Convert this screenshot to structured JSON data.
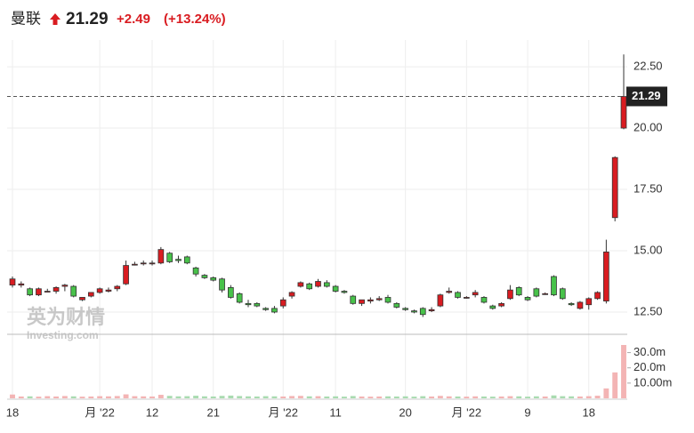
{
  "header": {
    "name": "曼联",
    "price": "21.29",
    "change": "+2.49",
    "change_pct": "(+13.24%)"
  },
  "watermark": {
    "cn": "英为财情",
    "en": "Investing.com"
  },
  "chart_data": {
    "type": "candlestick",
    "categories": [
      "18",
      null,
      null,
      null,
      null,
      null,
      null,
      null,
      null,
      null,
      "月 '22",
      null,
      null,
      null,
      null,
      null,
      "12",
      null,
      null,
      null,
      null,
      null,
      null,
      "21",
      null,
      null,
      null,
      null,
      null,
      null,
      null,
      "月 '22",
      null,
      null,
      null,
      null,
      null,
      "11",
      null,
      null,
      null,
      null,
      null,
      null,
      null,
      "20",
      null,
      null,
      null,
      null,
      null,
      null,
      "月 '22",
      null,
      null,
      null,
      null,
      null,
      null,
      "9",
      null,
      null,
      null,
      null,
      null,
      null,
      "18",
      null,
      null,
      null,
      null
    ],
    "open": [
      13.6,
      13.6,
      13.45,
      13.2,
      13.35,
      13.35,
      13.55,
      13.55,
      13.0,
      13.15,
      13.3,
      13.35,
      13.45,
      13.65,
      14.45,
      14.5,
      14.5,
      14.5,
      14.9,
      14.65,
      14.75,
      14.3,
      14.0,
      13.9,
      13.85,
      13.5,
      13.25,
      12.85,
      12.85,
      12.65,
      12.65,
      12.75,
      13.15,
      13.55,
      13.65,
      13.55,
      13.7,
      13.55,
      13.35,
      13.15,
      12.85,
      12.95,
      13.0,
      13.1,
      12.85,
      12.65,
      12.55,
      12.65,
      12.55,
      12.75,
      13.3,
      13.3,
      13.1,
      13.2,
      13.1,
      12.75,
      12.75,
      13.05,
      13.5,
      13.1,
      13.45,
      13.25,
      13.95,
      13.45,
      12.85,
      12.65,
      12.8,
      13.05,
      12.95,
      16.35,
      20.0
    ],
    "high": [
      13.95,
      13.75,
      13.5,
      13.5,
      13.45,
      13.55,
      13.65,
      13.6,
      13.1,
      13.3,
      13.5,
      13.5,
      13.6,
      14.6,
      14.55,
      14.6,
      14.6,
      15.15,
      14.95,
      14.8,
      14.8,
      14.35,
      14.05,
      13.95,
      13.9,
      13.6,
      13.3,
      13.0,
      12.9,
      12.7,
      12.75,
      13.1,
      13.35,
      13.75,
      13.7,
      13.85,
      13.8,
      13.6,
      13.4,
      13.2,
      13.0,
      13.1,
      13.15,
      13.2,
      12.9,
      12.7,
      12.6,
      12.7,
      12.7,
      13.25,
      13.5,
      13.35,
      13.15,
      13.4,
      13.15,
      12.8,
      12.9,
      13.6,
      13.55,
      13.15,
      13.5,
      13.3,
      14.0,
      13.5,
      12.9,
      12.95,
      13.1,
      13.35,
      15.45,
      18.85,
      23.0
    ],
    "low": [
      13.5,
      13.5,
      13.15,
      13.15,
      13.3,
      13.25,
      13.35,
      13.1,
      12.95,
      13.1,
      13.25,
      13.3,
      13.35,
      13.6,
      14.4,
      14.4,
      14.4,
      14.45,
      14.5,
      14.5,
      14.45,
      13.95,
      13.85,
      13.75,
      13.3,
      13.05,
      12.85,
      12.7,
      12.7,
      12.55,
      12.45,
      12.65,
      13.05,
      13.5,
      13.4,
      13.5,
      13.5,
      13.3,
      13.25,
      12.8,
      12.75,
      12.85,
      12.95,
      12.85,
      12.65,
      12.55,
      12.45,
      12.3,
      12.5,
      12.7,
      13.25,
      13.05,
      13.05,
      13.1,
      12.85,
      12.6,
      12.7,
      13.0,
      13.15,
      12.95,
      13.1,
      13.2,
      13.15,
      13.0,
      12.75,
      12.6,
      12.6,
      13.0,
      12.85,
      16.2,
      19.95
    ],
    "close": [
      13.85,
      13.65,
      13.2,
      13.45,
      13.35,
      13.5,
      13.6,
      13.15,
      13.1,
      13.3,
      13.45,
      13.4,
      13.55,
      14.4,
      14.45,
      14.5,
      14.5,
      15.05,
      14.55,
      14.6,
      14.5,
      14.05,
      13.9,
      13.8,
      13.4,
      13.1,
      12.9,
      12.8,
      12.75,
      12.6,
      12.5,
      13.0,
      13.3,
      13.7,
      13.45,
      13.75,
      13.55,
      13.35,
      13.3,
      12.85,
      13.0,
      13.0,
      13.05,
      12.9,
      12.7,
      12.6,
      12.5,
      12.4,
      12.6,
      13.2,
      13.35,
      13.1,
      13.1,
      13.3,
      12.9,
      12.65,
      12.85,
      13.4,
      13.2,
      13.0,
      13.15,
      13.25,
      13.2,
      13.05,
      12.8,
      12.9,
      13.05,
      13.3,
      14.95,
      18.8,
      21.29
    ],
    "volume": [
      2500000,
      1200000,
      1300000,
      1100000,
      1400000,
      1200000,
      1500000,
      1300000,
      1100000,
      1200000,
      1400000,
      1300000,
      1500000,
      2600000,
      1400000,
      1300000,
      1200000,
      2300000,
      1600000,
      1300000,
      1400000,
      1700000,
      1300000,
      1200000,
      1600000,
      1800000,
      1500000,
      1300000,
      1200000,
      1400000,
      1300000,
      1200000,
      1500000,
      1600000,
      1300000,
      1400000,
      1200000,
      1300000,
      1100000,
      1500000,
      1200000,
      1100000,
      1200000,
      1300000,
      1200000,
      1300000,
      1100000,
      1400000,
      1200000,
      1600000,
      1300000,
      1200000,
      1100000,
      1300000,
      1200000,
      1100000,
      1200000,
      1400000,
      1300000,
      1100000,
      1300000,
      1200000,
      1900000,
      1400000,
      1300000,
      1200000,
      1400000,
      1700000,
      6500000,
      17000000,
      35000000
    ],
    "up_color": "#d91c21",
    "down_color": "#48c24a",
    "volume_up_color": "#f3b4b4",
    "volume_down_color": "#a9dbb0",
    "ylim": [
      11.63,
      23.59
    ],
    "yticks": [
      {
        "value": 12.5,
        "label": "12.50"
      },
      {
        "value": 15,
        "label": "15.00"
      },
      {
        "value": 17.5,
        "label": "17.50"
      },
      {
        "value": 20,
        "label": "20.00"
      },
      {
        "value": 22.5,
        "label": "22.50"
      }
    ],
    "y2lim": [
      0,
      42000000
    ],
    "y2ticks": [
      {
        "value": 10000000,
        "label": "10.00m"
      },
      {
        "value": 20000000,
        "label": "20.0m"
      },
      {
        "value": 30000000,
        "label": "30.0m"
      }
    ],
    "last_price": 21.29,
    "grid": true
  }
}
